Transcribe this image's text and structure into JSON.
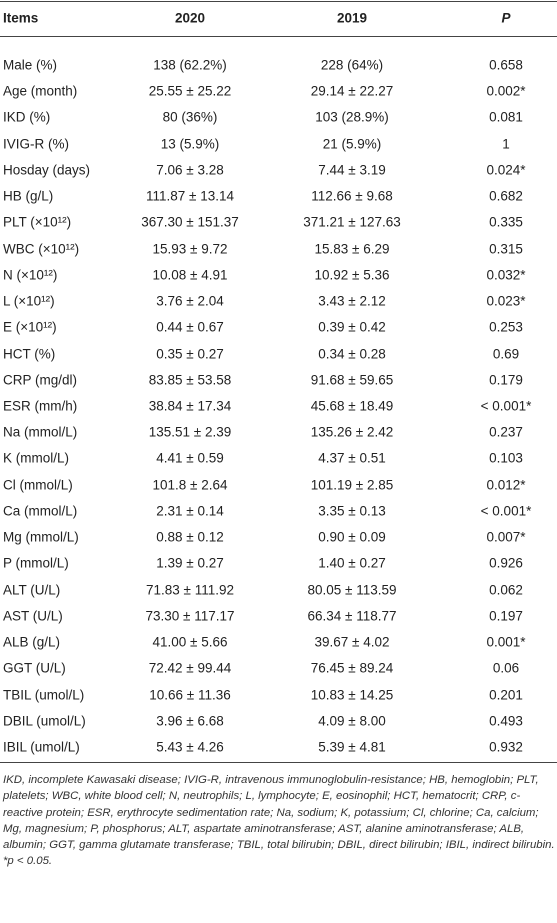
{
  "table": {
    "header": [
      "Items",
      "2020",
      "2019",
      "P"
    ],
    "rows": [
      [
        "Male (%)",
        "138 (62.2%)",
        "228 (64%)",
        "0.658"
      ],
      [
        "Age (month)",
        "25.55 ± 25.22",
        "29.14 ± 22.27",
        "0.002*"
      ],
      [
        "IKD (%)",
        "80 (36%)",
        "103 (28.9%)",
        "0.081"
      ],
      [
        "IVIG-R (%)",
        "13 (5.9%)",
        "21 (5.9%)",
        "1"
      ],
      [
        "Hosday (days)",
        "7.06 ± 3.28",
        "7.44 ± 3.19",
        "0.024*"
      ],
      [
        "HB (g/L)",
        "111.87 ± 13.14",
        "112.66 ± 9.68",
        "0.682"
      ],
      [
        "PLT (×10¹²)",
        "367.30 ± 151.37",
        "371.21 ± 127.63",
        "0.335"
      ],
      [
        "WBC (×10¹²)",
        "15.93 ± 9.72",
        "15.83 ± 6.29",
        "0.315"
      ],
      [
        "N (×10¹²)",
        "10.08 ± 4.91",
        "10.92 ± 5.36",
        "0.032*"
      ],
      [
        "L (×10¹²)",
        "3.76 ± 2.04",
        "3.43 ± 2.12",
        "0.023*"
      ],
      [
        "E (×10¹²)",
        "0.44 ± 0.67",
        "0.39 ± 0.42",
        "0.253"
      ],
      [
        "HCT (%)",
        "0.35 ± 0.27",
        "0.34 ± 0.28",
        "0.69"
      ],
      [
        "CRP (mg/dl)",
        "83.85 ± 53.58",
        "91.68 ± 59.65",
        "0.179"
      ],
      [
        "ESR (mm/h)",
        "38.84 ± 17.34",
        "45.68 ± 18.49",
        "< 0.001*"
      ],
      [
        "Na (mmol/L)",
        "135.51 ± 2.39",
        "135.26 ± 2.42",
        "0.237"
      ],
      [
        "K (mmol/L)",
        "4.41 ± 0.59",
        "4.37 ± 0.51",
        "0.103"
      ],
      [
        "Cl (mmol/L)",
        "101.8 ± 2.64",
        "101.19 ± 2.85",
        "0.012*"
      ],
      [
        "Ca (mmol/L)",
        "2.31 ± 0.14",
        "3.35 ± 0.13",
        "< 0.001*"
      ],
      [
        "Mg (mmol/L)",
        "0.88 ± 0.12",
        "0.90 ± 0.09",
        "0.007*"
      ],
      [
        "P (mmol/L)",
        "1.39 ± 0.27",
        "1.40 ± 0.27",
        "0.926"
      ],
      [
        "ALT (U/L)",
        "71.83 ± 111.92",
        "80.05 ± 113.59",
        "0.062"
      ],
      [
        "AST (U/L)",
        "73.30 ± 117.17",
        "66.34 ± 118.77",
        "0.197"
      ],
      [
        "ALB (g/L)",
        "41.00 ± 5.66",
        "39.67 ± 4.02",
        "0.001*"
      ],
      [
        "GGT (U/L)",
        "72.42 ± 99.44",
        "76.45 ± 89.24",
        "0.06"
      ],
      [
        "TBIL (umol/L)",
        "10.66 ± 11.36",
        "10.83 ± 14.25",
        "0.201"
      ],
      [
        "DBIL (umol/L)",
        "3.96 ± 6.68",
        "4.09 ± 8.00",
        "0.493"
      ],
      [
        "IBIL (umol/L)",
        "5.43 ± 4.26",
        "5.39 ± 4.81",
        "0.932"
      ]
    ],
    "footnote": "IKD, incomplete Kawasaki disease; IVIG-R, intravenous immunoglobulin-resistance; HB, hemoglobin; PLT, platelets; WBC, white blood cell; N, neutrophils; L, lymphocyte; E, eosinophil; HCT, hematocrit; CRP, c-reactive protein; ESR, erythrocyte sedimentation rate; Na, sodium; K, potassium; Cl, chlorine; Ca, calcium; Mg, magnesium; P, phosphorus; ALT, aspartate aminotransferase; AST, alanine aminotransferase; ALB, albumin; GGT, gamma glutamate transferase; TBIL, total bilirubin; DBIL, direct bilirubin; IBIL, indirect bilirubin.",
    "significance": "*p < 0.05."
  }
}
